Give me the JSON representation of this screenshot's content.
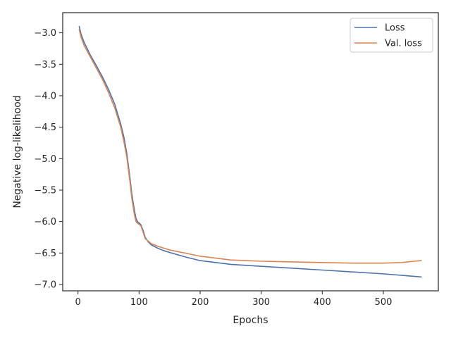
{
  "chart_data": {
    "type": "line",
    "title": "",
    "xlabel": "Epochs",
    "ylabel": "Negative log-likelihood",
    "xlim": [
      -25,
      590
    ],
    "ylim": [
      -7.1,
      -2.68
    ],
    "xticks": [
      0,
      100,
      200,
      300,
      400,
      500
    ],
    "yticks": [
      -3.0,
      -3.5,
      -4.0,
      -4.5,
      -5.0,
      -5.5,
      -6.0,
      -6.5,
      -7.0
    ],
    "xtick_labels": [
      "0",
      "100",
      "200",
      "300",
      "400",
      "500"
    ],
    "ytick_labels": [
      "−3.0",
      "−3.5",
      "−4.0",
      "−4.5",
      "−5.0",
      "−5.5",
      "−6.0",
      "−6.5",
      "−7.0"
    ],
    "grid": false,
    "legend_position": "top-right",
    "series": [
      {
        "name": "Loss",
        "color": "#4c72b0",
        "x": [
          2,
          5,
          10,
          20,
          30,
          40,
          50,
          60,
          70,
          75,
          80,
          85,
          88,
          92,
          95,
          98,
          100,
          103,
          107,
          110,
          115,
          120,
          130,
          140,
          150,
          175,
          200,
          250,
          300,
          350,
          400,
          450,
          500,
          550,
          562
        ],
        "y": [
          -2.9,
          -3.02,
          -3.15,
          -3.35,
          -3.52,
          -3.7,
          -3.9,
          -4.13,
          -4.45,
          -4.65,
          -4.92,
          -5.3,
          -5.55,
          -5.8,
          -5.95,
          -6.01,
          -6.02,
          -6.05,
          -6.15,
          -6.25,
          -6.32,
          -6.37,
          -6.42,
          -6.46,
          -6.49,
          -6.56,
          -6.62,
          -6.68,
          -6.71,
          -6.74,
          -6.77,
          -6.8,
          -6.83,
          -6.87,
          -6.88
        ]
      },
      {
        "name": "Val. loss",
        "color": "#dd8452",
        "x": [
          2,
          5,
          10,
          20,
          30,
          40,
          50,
          60,
          70,
          75,
          80,
          85,
          88,
          92,
          95,
          98,
          100,
          103,
          107,
          110,
          115,
          120,
          130,
          140,
          150,
          175,
          200,
          250,
          300,
          350,
          400,
          450,
          500,
          530,
          550,
          562
        ],
        "y": [
          -2.95,
          -3.07,
          -3.2,
          -3.38,
          -3.56,
          -3.74,
          -3.95,
          -4.19,
          -4.5,
          -4.72,
          -4.98,
          -5.36,
          -5.62,
          -5.87,
          -6.0,
          -6.03,
          -6.04,
          -6.07,
          -6.18,
          -6.27,
          -6.31,
          -6.35,
          -6.39,
          -6.42,
          -6.45,
          -6.5,
          -6.55,
          -6.61,
          -6.63,
          -6.64,
          -6.65,
          -6.66,
          -6.66,
          -6.65,
          -6.63,
          -6.62
        ]
      }
    ]
  }
}
